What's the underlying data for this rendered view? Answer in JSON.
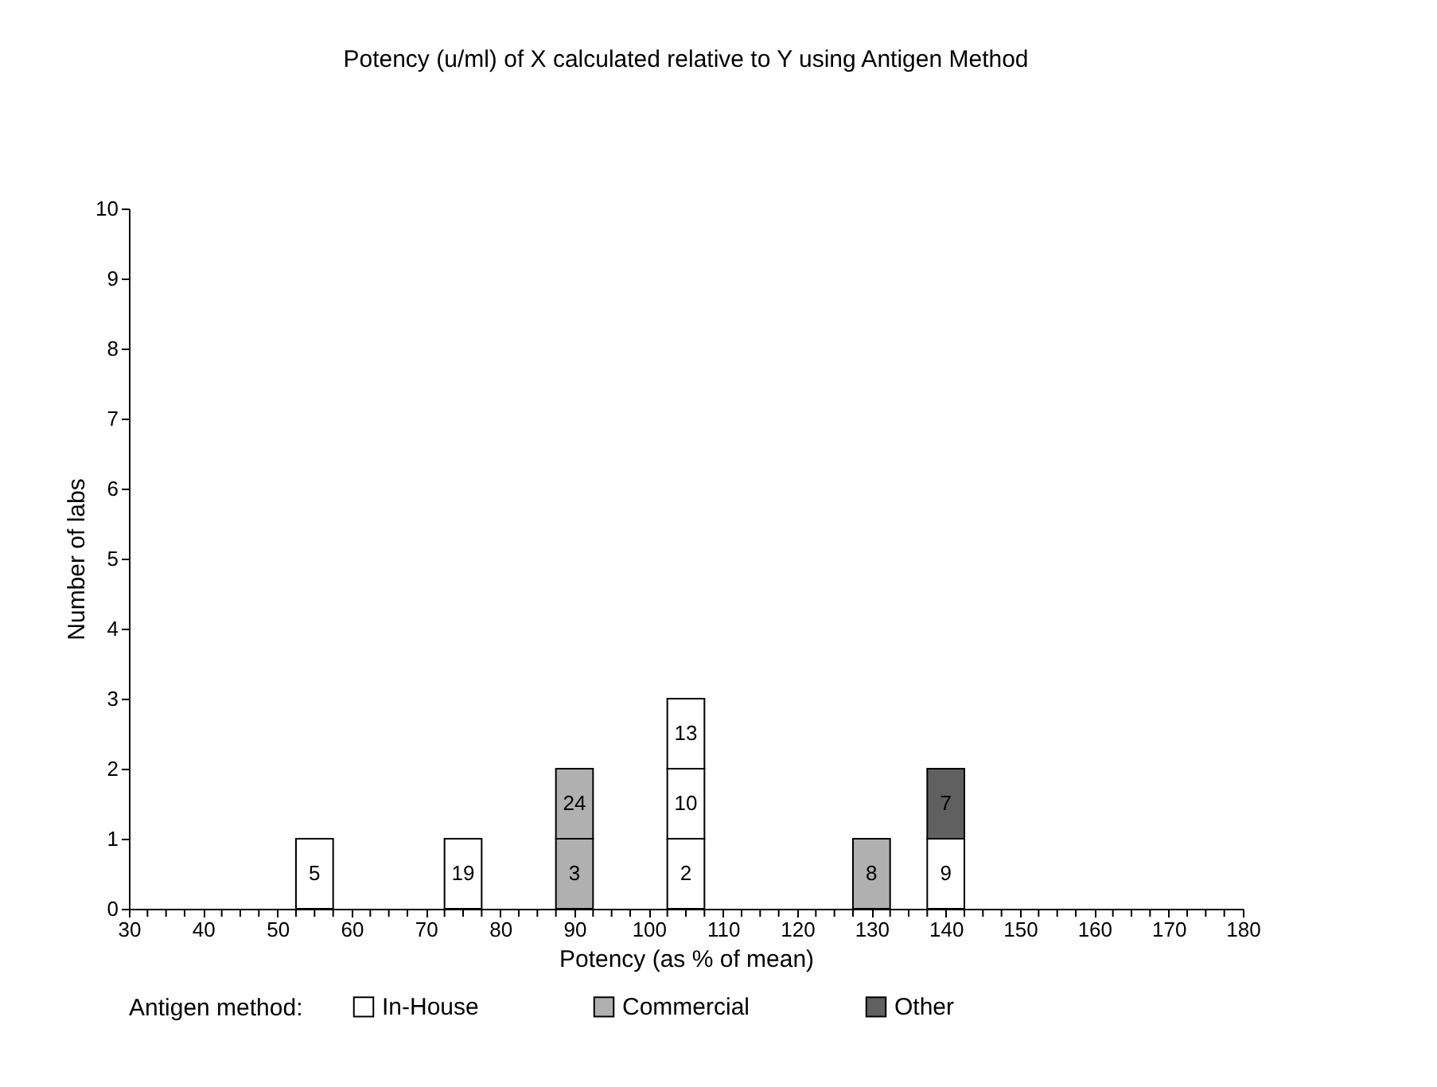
{
  "chart_data": {
    "type": "bar",
    "stacked": true,
    "title": "Potency (u/ml) of X calculated relative to Y using Antigen Method",
    "xlabel": "Potency (as % of mean)",
    "ylabel": "Number of labs",
    "legend_title": "Antigen method:",
    "x": [
      55,
      75,
      90,
      105,
      130,
      140
    ],
    "series": [
      {
        "name": "In-House",
        "color": "#ffffff",
        "values": [
          1,
          1,
          null,
          1,
          null,
          1
        ]
      },
      {
        "name": "Commercial",
        "color": "#b0b0b0",
        "values": [
          null,
          null,
          1,
          null,
          1,
          null
        ]
      },
      {
        "color": "#ffffff",
        "values": [
          null,
          null,
          null,
          1,
          null,
          null
        ]
      },
      {
        "color": "#b0b0b0",
        "values": [
          null,
          null,
          1,
          null,
          null,
          null
        ]
      },
      {
        "name": "Other",
        "color": "#606060",
        "values": [
          null,
          null,
          null,
          null,
          null,
          1
        ]
      },
      {
        "color": "#ffffff",
        "values": [
          null,
          null,
          null,
          1,
          null,
          null
        ]
      }
    ],
    "annotations": [
      "5",
      "19",
      "2",
      "9",
      "3",
      "8",
      "10",
      "24",
      "7",
      "13"
    ],
    "xlim": [
      30,
      180
    ],
    "xticks": [
      30,
      {
        "value": 32.5,
        "label": null
      },
      {
        "value": 35,
        "label": null
      },
      {
        "value": 37.5,
        "label": null
      },
      40,
      {
        "value": 42.5,
        "label": null
      },
      {
        "value": 45,
        "label": null
      },
      {
        "value": 47.5,
        "label": null
      },
      50,
      {
        "value": 52.5,
        "label": null
      },
      {
        "value": 55,
        "label": null
      },
      {
        "value": 57.5,
        "label": null
      },
      60,
      {
        "value": 62.5,
        "label": null
      },
      {
        "value": 65,
        "label": null
      },
      {
        "value": 67.5,
        "label": null
      },
      70,
      {
        "value": 72.5,
        "label": null
      },
      {
        "value": 75,
        "label": null
      },
      {
        "value": 77.5,
        "label": null
      },
      80,
      {
        "value": 82.5,
        "label": null
      },
      {
        "value": 85,
        "label": null
      },
      {
        "value": 87.5,
        "label": null
      },
      90,
      {
        "value": 92.5,
        "label": null
      },
      {
        "value": 95,
        "label": null
      },
      {
        "value": 97.5,
        "label": null
      },
      100,
      {
        "value": 102.5,
        "label": null
      },
      {
        "value": 105,
        "label": null
      },
      {
        "value": 107.5,
        "label": null
      },
      110,
      {
        "value": 112.5,
        "label": null
      },
      {
        "value": 115,
        "label": null
      },
      {
        "value": 117.5,
        "label": null
      },
      120,
      {
        "value": 122.5,
        "label": null
      },
      {
        "value": 125,
        "label": null
      },
      {
        "value": 127.5,
        "label": null
      },
      130,
      {
        "value": 132.5,
        "label": null
      },
      {
        "value": 135,
        "label": null
      },
      {
        "value": 137.5,
        "label": null
      },
      140,
      {
        "value": 142.5,
        "label": null
      },
      {
        "value": 145,
        "label": null
      },
      {
        "value": 147.5,
        "label": null
      },
      150,
      {
        "value": 152.5,
        "label": null
      },
      {
        "value": 155,
        "label": null
      },
      {
        "value": 157.5,
        "label": null
      },
      160,
      {
        "value": 162.5,
        "label": null
      },
      {
        "value": 165,
        "label": null
      },
      {
        "value": 167.5,
        "label": null
      },
      170,
      {
        "value": 172.5,
        "label": null
      },
      {
        "value": 175,
        "label": null
      },
      {
        "value": 177.5,
        "label": null
      },
      180
    ],
    "ylim": [
      0,
      10
    ],
    "yticks": [
      0,
      1,
      2,
      3,
      4,
      5,
      6,
      7,
      8,
      9,
      10
    ],
    "legend": "bottom"
  }
}
